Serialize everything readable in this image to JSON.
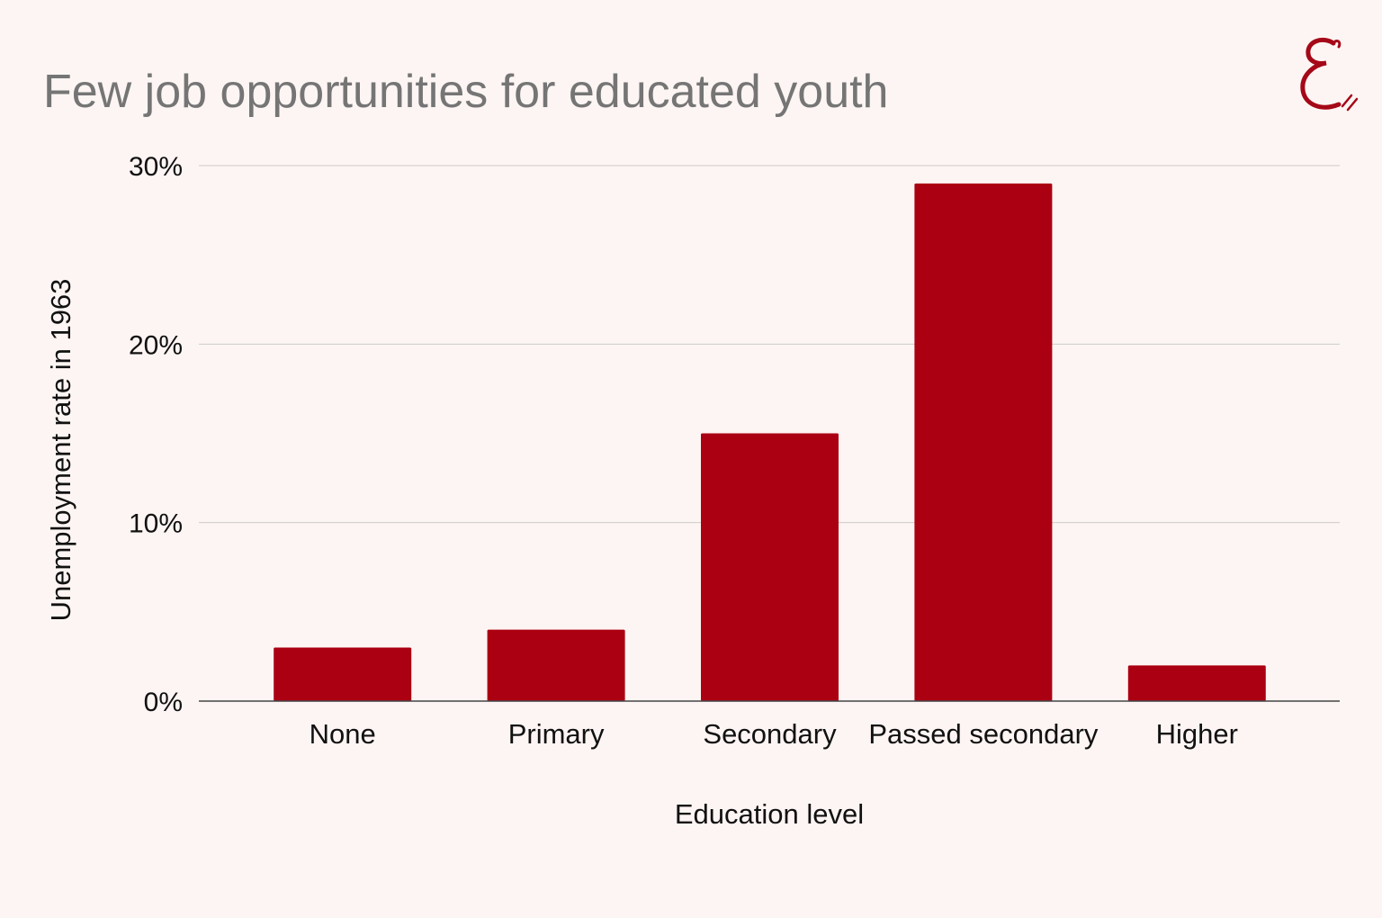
{
  "title": "Few job opportunities for educated youth",
  "logo": {
    "icon": "script-e-logo-icon",
    "color": "#a50818"
  },
  "colors": {
    "bar": "#ab0012",
    "grid": "#cccccc",
    "axis": "#444444",
    "title": "#757575",
    "background": "#fdf5f3"
  },
  "chart_data": {
    "type": "bar",
    "title": "Few job opportunities for educated youth",
    "xlabel": "Education level",
    "ylabel": "Unemployment rate in 1963",
    "categories": [
      "None",
      "Primary",
      "Secondary",
      "Passed secondary",
      "Higher"
    ],
    "values": [
      3,
      4,
      15,
      29,
      2
    ],
    "unit": "%",
    "ylim": [
      0,
      30
    ],
    "yticks": [
      0,
      10,
      20,
      30
    ],
    "ytick_labels": [
      "0%",
      "10%",
      "20%",
      "30%"
    ],
    "grid": true,
    "legend": "none"
  }
}
